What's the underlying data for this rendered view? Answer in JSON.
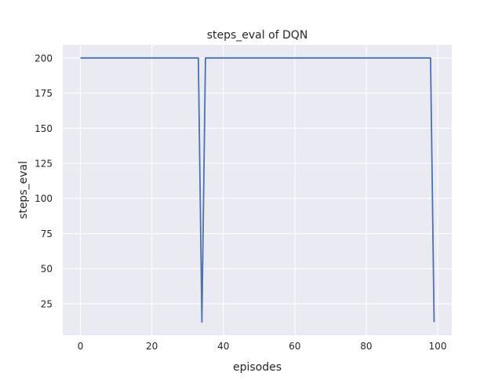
{
  "chart_data": {
    "type": "line",
    "title": "steps_eval of DQN",
    "xlabel": "episodes",
    "ylabel": "steps_eval",
    "xlim": [
      -4.95,
      103.95
    ],
    "ylim": [
      2.6,
      209.4
    ],
    "xticks": [
      0,
      20,
      40,
      60,
      80,
      100
    ],
    "yticks": [
      25,
      50,
      75,
      100,
      125,
      150,
      175,
      200
    ],
    "grid": true,
    "background": "#eaeaf2",
    "line_color": "#4c72b0",
    "series": [
      {
        "x": [
          0,
          1,
          2,
          3,
          4,
          5,
          6,
          7,
          8,
          9,
          10,
          11,
          12,
          13,
          14,
          15,
          16,
          17,
          18,
          19,
          20,
          21,
          22,
          23,
          24,
          25,
          26,
          27,
          28,
          29,
          30,
          31,
          32,
          33,
          34,
          35,
          36,
          37,
          38,
          39,
          40,
          41,
          42,
          43,
          44,
          45,
          46,
          47,
          48,
          49,
          50,
          51,
          52,
          53,
          54,
          55,
          56,
          57,
          58,
          59,
          60,
          61,
          62,
          63,
          64,
          65,
          66,
          67,
          68,
          69,
          70,
          71,
          72,
          73,
          74,
          75,
          76,
          77,
          78,
          79,
          80,
          81,
          82,
          83,
          84,
          85,
          86,
          87,
          88,
          89,
          90,
          91,
          92,
          93,
          94,
          95,
          96,
          97,
          98,
          99
        ],
        "y": [
          200,
          200,
          200,
          200,
          200,
          200,
          200,
          200,
          200,
          200,
          200,
          200,
          200,
          200,
          200,
          200,
          200,
          200,
          200,
          200,
          200,
          200,
          200,
          200,
          200,
          200,
          200,
          200,
          200,
          200,
          200,
          200,
          200,
          200,
          12,
          200,
          200,
          200,
          200,
          200,
          200,
          200,
          200,
          200,
          200,
          200,
          200,
          200,
          200,
          200,
          200,
          200,
          200,
          200,
          200,
          200,
          200,
          200,
          200,
          200,
          200,
          200,
          200,
          200,
          200,
          200,
          200,
          200,
          200,
          200,
          200,
          200,
          200,
          200,
          200,
          200,
          200,
          200,
          200,
          200,
          200,
          200,
          200,
          200,
          200,
          200,
          200,
          200,
          200,
          200,
          200,
          200,
          200,
          200,
          200,
          200,
          200,
          200,
          200,
          12
        ]
      }
    ]
  }
}
